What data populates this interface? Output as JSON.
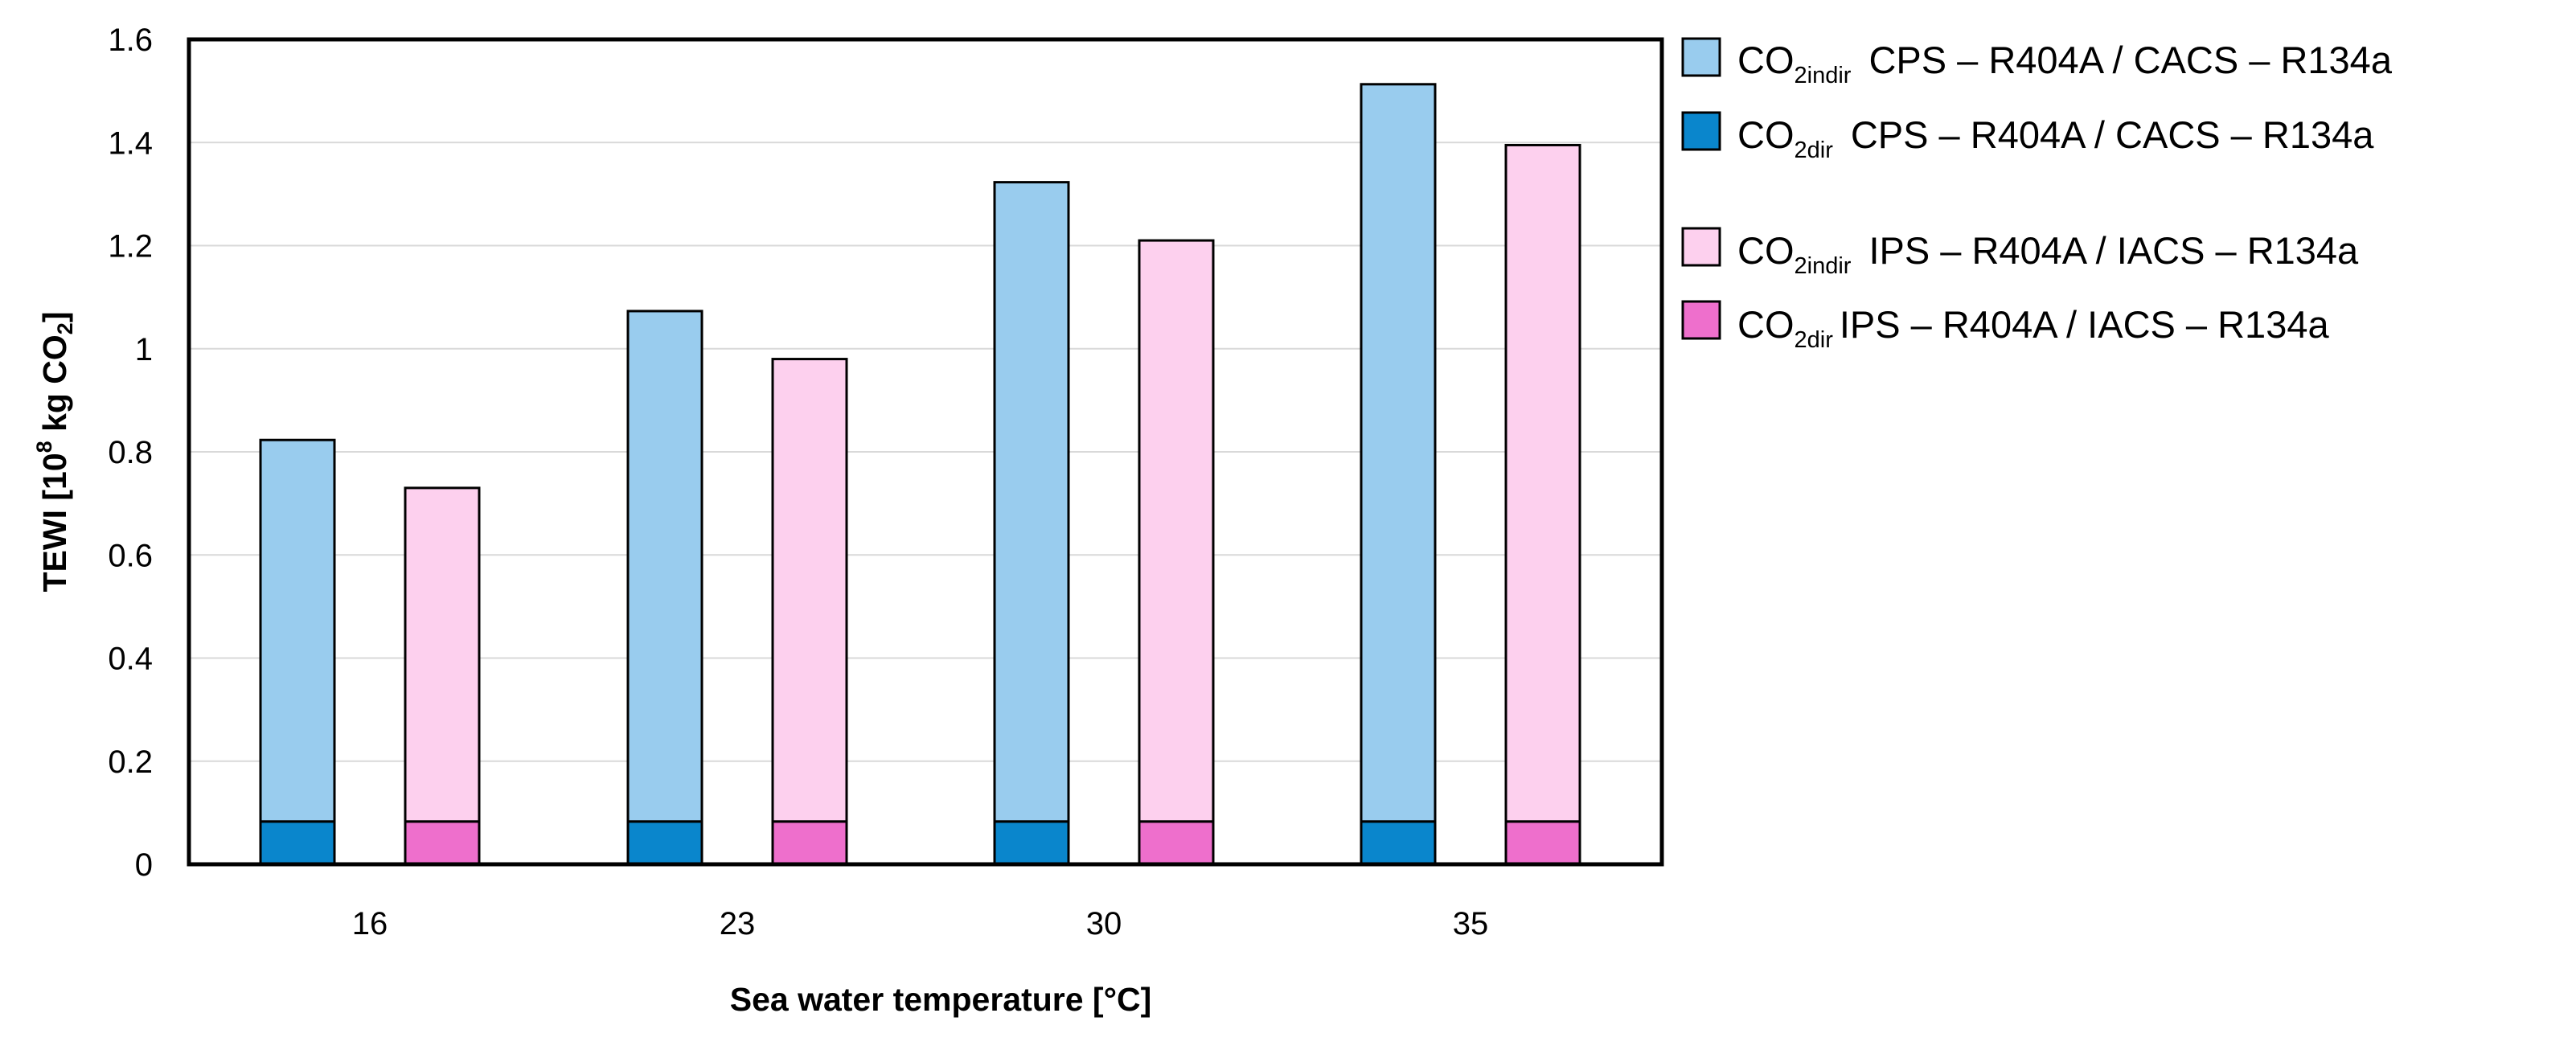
{
  "chart_data": {
    "type": "bar",
    "subtype": "stacked-grouped",
    "xlabel": "Sea water temperature [°C]",
    "ylabel": {
      "prefix": "TEWI [10",
      "sup": "8",
      "middle": " kg CO",
      "sub": "2",
      "suffix": "]"
    },
    "categories": [
      "16",
      "23",
      "30",
      "35"
    ],
    "ylim": [
      0,
      1.6
    ],
    "yticks": [
      "0",
      "0.2",
      "0.4",
      "0.6",
      "0.8",
      "1",
      "1.2",
      "1.4",
      "1.6"
    ],
    "ytick_values": [
      0,
      0.2,
      0.4,
      0.6,
      0.8,
      1.0,
      1.2,
      1.4,
      1.6
    ],
    "grid": true,
    "legend_position": "right",
    "series": [
      {
        "key": "cps_indir",
        "base": "CO",
        "sub": "2indir",
        "label": "CPS – R404A / CACS – R134a",
        "group": "CPS/CACS",
        "stack_position": "top",
        "color": "#99ccee",
        "values": [
          0.74,
          0.99,
          1.24,
          1.43
        ]
      },
      {
        "key": "cps_dir",
        "base": "CO",
        "sub": "2dir",
        "label": "CPS – R404A / CACS – R134a",
        "group": "CPS/CACS",
        "stack_position": "bottom",
        "color": "#0a86cc",
        "values": [
          0.083,
          0.083,
          0.083,
          0.083
        ]
      },
      {
        "key": "ips_indir",
        "base": "CO",
        "sub": "2indir",
        "label": "IPS – R404A / IACS – R134a",
        "group": "IPS/IACS",
        "stack_position": "top",
        "color": "#fdd0ee",
        "values": [
          0.647,
          0.897,
          1.127,
          1.312
        ]
      },
      {
        "key": "ips_dir",
        "base": "CO",
        "sub": "2dir",
        "label": "IPS – R404A / IACS – R134a",
        "group": "IPS/IACS",
        "stack_position": "bottom",
        "color": "#ee6fcc",
        "values": [
          0.083,
          0.083,
          0.083,
          0.083
        ]
      }
    ],
    "totals": {
      "CPS/CACS": [
        0.823,
        1.073,
        1.323,
        1.513
      ],
      "IPS/IACS": [
        0.73,
        0.98,
        1.21,
        1.395
      ]
    }
  }
}
